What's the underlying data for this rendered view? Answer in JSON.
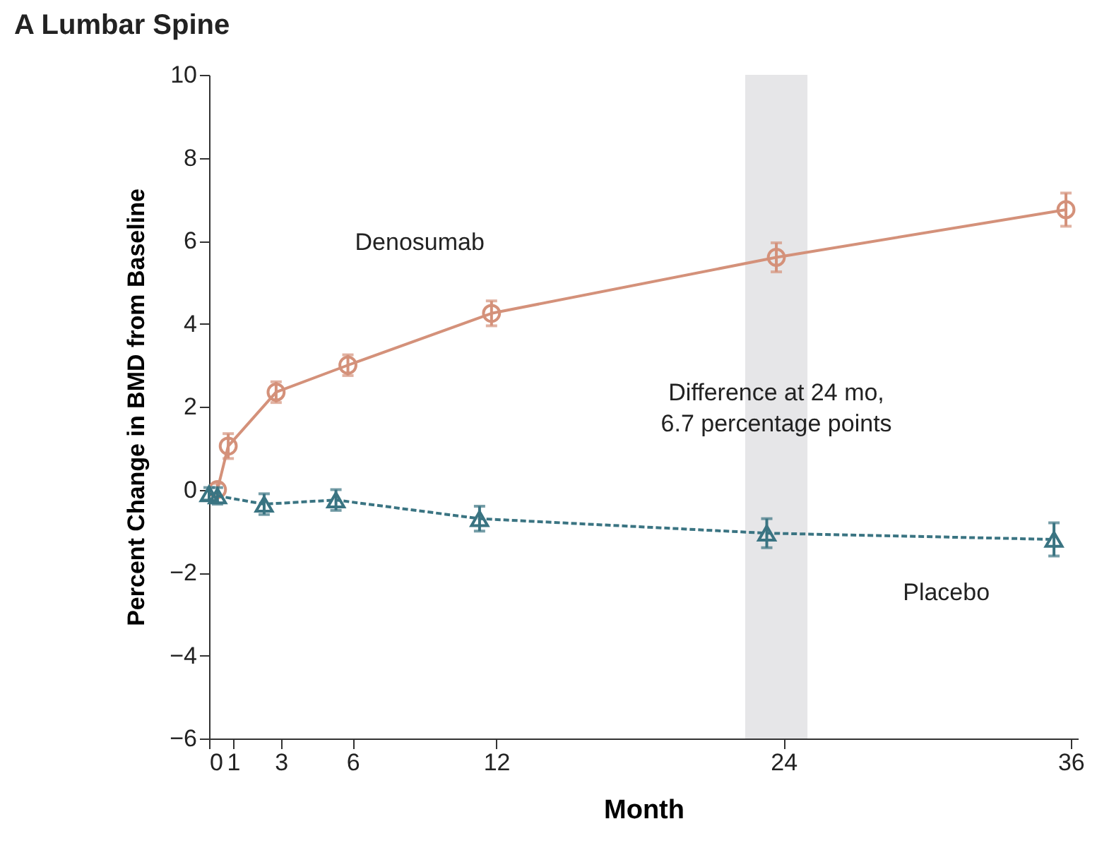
{
  "chart_data": {
    "type": "line",
    "title": "A  Lumbar Spine",
    "xlabel": "Month",
    "ylabel": "Percent Change in BMD from Baseline",
    "xlim": [
      0,
      36.3
    ],
    "xticks": [
      0,
      1,
      3,
      6,
      12,
      24,
      36
    ],
    "ylim": [
      -6,
      10
    ],
    "yticks": [
      -6,
      -4,
      -2,
      0,
      2,
      4,
      6,
      8,
      10
    ],
    "grid": false,
    "series": [
      {
        "name": "Denosumab",
        "color": "#d4917a",
        "marker": "circle",
        "line_style": "solid",
        "x": [
          0.35,
          0.8,
          2.8,
          5.8,
          11.8,
          23.7,
          35.8
        ],
        "values": [
          0,
          1.05,
          2.35,
          3.0,
          4.25,
          5.6,
          6.75
        ],
        "errors": [
          0.15,
          0.3,
          0.25,
          0.25,
          0.3,
          0.35,
          0.4
        ]
      },
      {
        "name": "Placebo",
        "color": "#3a7482",
        "marker": "triangle",
        "line_style": "dashed",
        "x": [
          0,
          0.35,
          2.3,
          5.3,
          11.3,
          23.3,
          35.3
        ],
        "values": [
          -0.1,
          -0.15,
          -0.35,
          -0.25,
          -0.7,
          -1.05,
          -1.2
        ],
        "errors": [
          0.15,
          0.2,
          0.25,
          0.25,
          0.3,
          0.35,
          0.4
        ]
      }
    ],
    "bands": [
      {
        "axis": "x",
        "from": 22.4,
        "to": 25.0,
        "color": "#e6e6e8",
        "label": "Difference at 24 mo,\n6.7 percentage points"
      }
    ]
  }
}
